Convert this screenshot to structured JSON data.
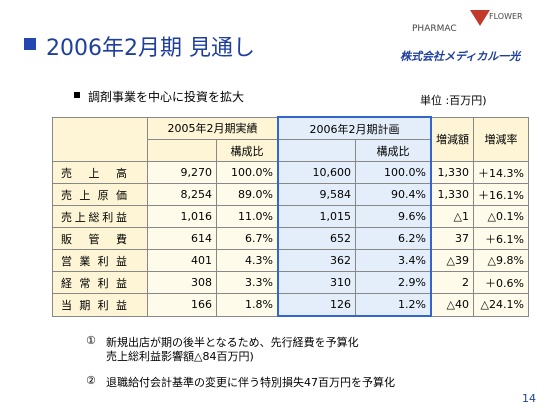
{
  "header": {
    "title": "2006年2月期 見通し",
    "logo": {
      "top": "PHARMAC",
      "side": "FLOWER",
      "company": "株式会社メディカル一光"
    }
  },
  "subtitle": "調剤事業を中心に投資を拡大",
  "unit": "単位 :百万円)",
  "table": {
    "header": [
      "2005年2月期実績",
      "2006年2月期計画",
      "増減額",
      "増減率"
    ],
    "subheader": [
      "構成比",
      "構成比"
    ],
    "rows": [
      [
        "売上高",
        "9,270",
        "100.0%",
        "10,600",
        "100.0%",
        "1,330",
        "＋14.3%"
      ],
      [
        "売上原価",
        "8,254",
        "89.0%",
        "9,584",
        "90.4%",
        "1,330",
        "＋16.1%"
      ],
      [
        "売上総利益",
        "1,016",
        "11.0%",
        "1,015",
        "9.6%",
        "△1",
        "△0.1%"
      ],
      [
        "販管費",
        "614",
        "6.7%",
        "652",
        "6.2%",
        "37",
        "＋6.1%"
      ],
      [
        "営業利益",
        "401",
        "4.3%",
        "362",
        "3.4%",
        "△39",
        "△9.8%"
      ],
      [
        "経常利益",
        "308",
        "3.3%",
        "310",
        "2.9%",
        "2",
        "＋0.6%"
      ],
      [
        "当期利益",
        "166",
        "1.8%",
        "126",
        "1.2%",
        "△40",
        "△24.1%"
      ]
    ]
  },
  "notes": [
    {
      "marker": "①",
      "lines": [
        "新規出店が期の後半となるため、先行経費を予算化",
        "売上総利益影響額△84百万円)"
      ]
    },
    {
      "marker": "②",
      "lines": [
        "退職給付会計基準の変更に伴う特別損失47百万円を予算化"
      ]
    }
  ],
  "page_number": "14"
}
